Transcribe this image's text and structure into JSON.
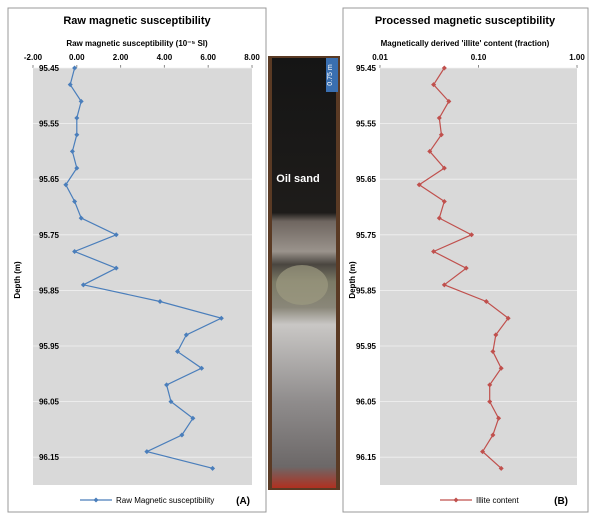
{
  "chart_data": [
    {
      "type": "line",
      "title": "Raw magnetic susceptibility",
      "xlabel": "Raw magnetic susceptibility (10⁻⁵ SI)",
      "ylabel": "Depth (m)",
      "panel_label": "(A)",
      "y": [
        95.45,
        95.48,
        95.51,
        95.54,
        95.57,
        95.6,
        95.63,
        95.66,
        95.69,
        95.72,
        95.75,
        95.78,
        95.81,
        95.84,
        95.87,
        95.9,
        95.93,
        95.96,
        95.99,
        96.02,
        96.05,
        96.08,
        96.11,
        96.14,
        96.17
      ],
      "series": [
        {
          "name": "Raw Magnetic susceptibility",
          "color": "#4a7ebb",
          "values": [
            -0.1,
            -0.3,
            0.2,
            0.0,
            0.0,
            -0.2,
            0.0,
            -0.5,
            -0.1,
            0.2,
            1.8,
            -0.1,
            1.8,
            0.3,
            3.8,
            6.6,
            5.0,
            4.6,
            5.7,
            4.1,
            4.3,
            5.3,
            4.8,
            3.2,
            6.2
          ]
        }
      ],
      "xlim": [
        -2,
        8
      ],
      "xticks": [
        {
          "value": -2,
          "label": "-2.00"
        },
        {
          "value": 0,
          "label": "0.00"
        },
        {
          "value": 2,
          "label": "2.00"
        },
        {
          "value": 4,
          "label": "4.00"
        },
        {
          "value": 6,
          "label": "6.00"
        },
        {
          "value": 8,
          "label": "8.00"
        }
      ],
      "ylim": [
        95.45,
        96.2
      ],
      "yticks": [
        95.45,
        95.55,
        95.65,
        95.75,
        95.85,
        95.95,
        96.05,
        96.15
      ],
      "xscale": "linear",
      "grid": true
    },
    {
      "type": "line",
      "title": "Processed magnetic susceptibility",
      "xlabel": "Magnetically derived 'illite' content (fraction)",
      "ylabel": "Depth (m)",
      "panel_label": "(B)",
      "y": [
        95.45,
        95.48,
        95.51,
        95.54,
        95.57,
        95.6,
        95.63,
        95.66,
        95.69,
        95.72,
        95.75,
        95.78,
        95.81,
        95.84,
        95.87,
        95.9,
        95.93,
        95.96,
        95.99,
        96.02,
        96.05,
        96.08,
        96.11,
        96.14,
        96.17
      ],
      "series": [
        {
          "name": "Illite content",
          "color": "#c0504d",
          "values": [
            0.045,
            0.035,
            0.05,
            0.04,
            0.042,
            0.032,
            0.045,
            0.025,
            0.045,
            0.04,
            0.085,
            0.035,
            0.075,
            0.045,
            0.12,
            0.2,
            0.15,
            0.14,
            0.17,
            0.13,
            0.13,
            0.16,
            0.14,
            0.11,
            0.17
          ]
        }
      ],
      "xlim": [
        0.01,
        1
      ],
      "xticks": [
        {
          "value": 0.01,
          "label": "0.01"
        },
        {
          "value": 0.1,
          "label": "0.10"
        },
        {
          "value": 1,
          "label": "1.00"
        }
      ],
      "ylim": [
        95.45,
        96.2
      ],
      "yticks": [
        95.45,
        95.55,
        95.65,
        95.75,
        95.85,
        95.95,
        96.05,
        96.15
      ],
      "xscale": "log",
      "grid": true
    }
  ],
  "core_photo": {
    "label": "Oil sand",
    "scale": "0.75 m"
  }
}
